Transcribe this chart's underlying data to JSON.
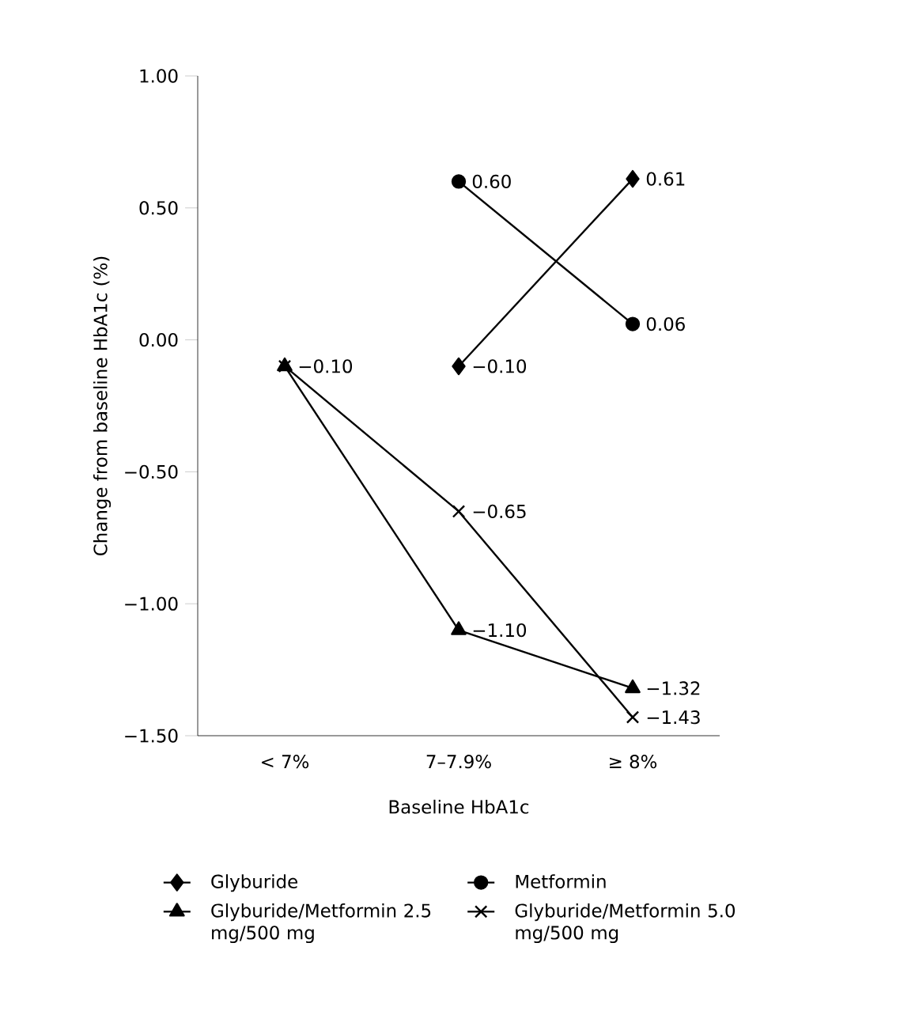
{
  "chart_data": {
    "type": "line",
    "xlabel": "Baseline HbA1c",
    "ylabel": "Change from baseline HbA1c (%)",
    "categories": [
      "< 7%",
      "7–7.9%",
      "≥ 8%"
    ],
    "ylim": [
      -1.5,
      1.0
    ],
    "yticks": [
      {
        "value": -1.5,
        "label": "−1.50"
      },
      {
        "value": -1.0,
        "label": "−1.00"
      },
      {
        "value": -0.5,
        "label": "−0.50"
      },
      {
        "value": 0.0,
        "label": "0.00"
      },
      {
        "value": 0.5,
        "label": "0.50"
      },
      {
        "value": 1.0,
        "label": "1.00"
      }
    ],
    "grid": false,
    "legend": "bottom",
    "series": [
      {
        "name": "Glyburide",
        "color": "#000000",
        "marker": "diamond",
        "values": [
          null,
          -0.1,
          0.61
        ],
        "value_labels": [
          null,
          "−0.10",
          "0.61"
        ]
      },
      {
        "name": "Metformin",
        "color": "#000000",
        "marker": "circle",
        "values": [
          null,
          0.6,
          0.06
        ],
        "value_labels": [
          null,
          "0.60",
          "0.06"
        ]
      },
      {
        "name": "Glyburide/Metformin 2.5 mg/500 mg",
        "color": "#000000",
        "marker": "triangle",
        "values": [
          -0.1,
          -1.1,
          -1.32
        ],
        "value_labels": [
          null,
          "−1.10",
          "−1.32"
        ]
      },
      {
        "name": "Glyburide/Metformin 5.0 mg/500 mg",
        "color": "#000000",
        "marker": "cross",
        "values": [
          -0.1,
          -0.65,
          -1.43
        ],
        "value_labels": [
          "−0.10",
          "−0.65",
          "−1.43"
        ]
      }
    ]
  }
}
